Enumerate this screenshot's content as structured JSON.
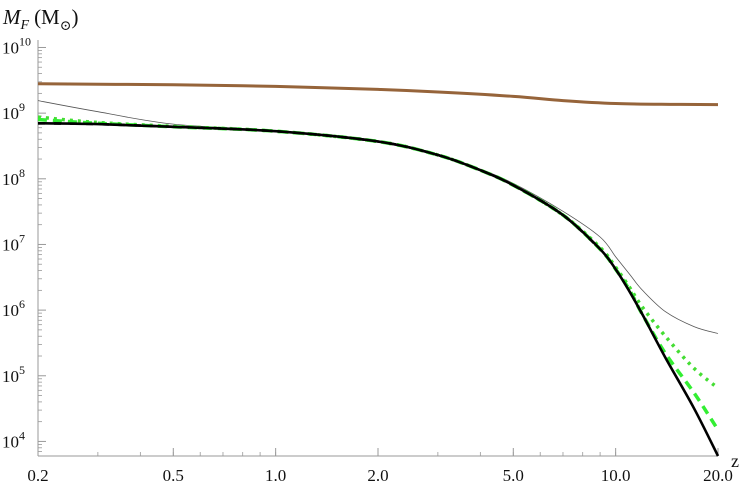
{
  "chart_data": {
    "type": "line",
    "title": "",
    "ylabel_main": "M",
    "ylabel_sub": "F",
    "ylabel_unit_open": "(M",
    "ylabel_unit_sub": "⊙",
    "ylabel_unit_close": ")",
    "xlabel": "z",
    "x_scale": "log",
    "y_scale": "log",
    "xlim": [
      0.2,
      20.0
    ],
    "ylim": [
      6000,
      13000000000
    ],
    "x_ticks": [
      {
        "value": 0.2,
        "label": "0.2"
      },
      {
        "value": 0.5,
        "label": "0.5"
      },
      {
        "value": 1.0,
        "label": "1.0"
      },
      {
        "value": 2.0,
        "label": "2.0"
      },
      {
        "value": 5.0,
        "label": "5.0"
      },
      {
        "value": 10.0,
        "label": "10.0"
      },
      {
        "value": 20.0,
        "label": "20.0"
      }
    ],
    "y_ticks": [
      {
        "exp": 4,
        "base": "10",
        "power": "4"
      },
      {
        "exp": 5,
        "base": "10",
        "power": "5"
      },
      {
        "exp": 6,
        "base": "10",
        "power": "6"
      },
      {
        "exp": 7,
        "base": "10",
        "power": "7"
      },
      {
        "exp": 8,
        "base": "10",
        "power": "8"
      },
      {
        "exp": 9,
        "base": "10",
        "power": "9"
      },
      {
        "exp": 10,
        "base": "10",
        "power": "10"
      }
    ],
    "grid": false,
    "legend": "none",
    "series": [
      {
        "color": "#96643a",
        "style": "solid",
        "width": 3,
        "points": [
          [
            0.2,
            2800000000.0
          ],
          [
            0.5,
            2700000000.0
          ],
          [
            1.0,
            2550000000.0
          ],
          [
            2.0,
            2300000000.0
          ],
          [
            3.0,
            2100000000.0
          ],
          [
            5.0,
            1800000000.0
          ],
          [
            7.0,
            1550000000.0
          ],
          [
            10.0,
            1400000000.0
          ],
          [
            15.0,
            1360000000.0
          ],
          [
            20.0,
            1350000000.0
          ]
        ]
      },
      {
        "color": "#555555",
        "style": "solid",
        "width": 0.8,
        "points": [
          [
            0.2,
            1550000000.0
          ],
          [
            0.3,
            1050000000.0
          ],
          [
            0.5,
            680000000.0
          ],
          [
            1.0,
            540000000.0
          ],
          [
            2.0,
            370000000.0
          ],
          [
            3.0,
            230000000.0
          ],
          [
            4.0,
            140000000.0
          ],
          [
            5.0,
            85000000.0
          ],
          [
            7.0,
            32000000.0
          ],
          [
            9.0,
            13000000.0
          ],
          [
            10.0,
            6500000.0
          ],
          [
            11.0,
            3500000.0
          ],
          [
            12.0,
            2000000.0
          ],
          [
            14.0,
            950000.0
          ],
          [
            17.0,
            560000.0
          ],
          [
            20.0,
            440000.0
          ]
        ]
      },
      {
        "color": "#44dd33",
        "style": "dotted",
        "width": 3.5,
        "points": [
          [
            0.2,
            870000000.0
          ],
          [
            0.3,
            720000000.0
          ],
          [
            0.5,
            630000000.0
          ],
          [
            1.0,
            530000000.0
          ],
          [
            2.0,
            370000000.0
          ],
          [
            3.0,
            230000000.0
          ],
          [
            4.0,
            135000000.0
          ],
          [
            5.0,
            80000000.0
          ],
          [
            7.0,
            28000000.0
          ],
          [
            9.0,
            9000000.0
          ],
          [
            10.0,
            4500000.0
          ],
          [
            11.0,
            2200000.0
          ],
          [
            12.0,
            1100000.0
          ],
          [
            14.0,
            400000.0
          ],
          [
            17.0,
            130000.0
          ],
          [
            20.0,
            65000.0
          ]
        ]
      },
      {
        "color": "#33ee33",
        "style": "dashed",
        "width": 3.5,
        "points": [
          [
            0.2,
            800000000.0
          ],
          [
            0.3,
            700000000.0
          ],
          [
            0.5,
            620000000.0
          ],
          [
            1.0,
            530000000.0
          ],
          [
            2.0,
            370000000.0
          ],
          [
            3.0,
            230000000.0
          ],
          [
            4.0,
            135000000.0
          ],
          [
            5.0,
            80000000.0
          ],
          [
            7.0,
            28000000.0
          ],
          [
            9.0,
            8500000.0
          ],
          [
            10.0,
            4200000.0
          ],
          [
            11.0,
            2000000.0
          ],
          [
            12.0,
            850000.0
          ],
          [
            14.0,
            220000.0
          ],
          [
            17.0,
            55000.0
          ],
          [
            20.0,
            15000.0
          ]
        ]
      },
      {
        "color": "#000000",
        "style": "solid",
        "width": 2.6,
        "points": [
          [
            0.2,
            700000000.0
          ],
          [
            0.3,
            680000000.0
          ],
          [
            0.5,
            620000000.0
          ],
          [
            1.0,
            530000000.0
          ],
          [
            2.0,
            370000000.0
          ],
          [
            3.0,
            230000000.0
          ],
          [
            4.0,
            135000000.0
          ],
          [
            5.0,
            80000000.0
          ],
          [
            7.0,
            28000000.0
          ],
          [
            9.0,
            8500000.0
          ],
          [
            10.0,
            4200000.0
          ],
          [
            11.0,
            1900000.0
          ],
          [
            12.0,
            850000.0
          ],
          [
            14.0,
            190000.0
          ],
          [
            17.0,
            32000.0
          ],
          [
            20.0,
            6000.0
          ]
        ]
      },
      {
        "color": "#000000",
        "style": "blackdash",
        "width": 2.6,
        "points": [
          [
            0.2,
            700000000.0
          ],
          [
            0.3,
            680000000.0
          ],
          [
            0.5,
            620000000.0
          ],
          [
            1.0,
            530000000.0
          ],
          [
            2.0,
            370000000.0
          ],
          [
            3.0,
            230000000.0
          ],
          [
            4.0,
            135000000.0
          ],
          [
            5.0,
            80000000.0
          ],
          [
            7.0,
            28000000.0
          ],
          [
            9.0,
            8500000.0
          ]
        ]
      }
    ]
  }
}
